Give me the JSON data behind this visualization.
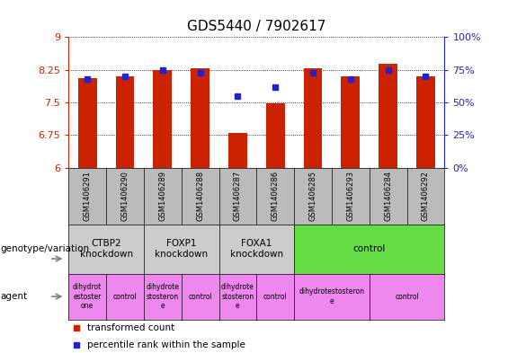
{
  "title": "GDS5440 / 7902617",
  "samples": [
    "GSM1406291",
    "GSM1406290",
    "GSM1406289",
    "GSM1406288",
    "GSM1406287",
    "GSM1406286",
    "GSM1406285",
    "GSM1406293",
    "GSM1406284",
    "GSM1406292"
  ],
  "transformed_counts": [
    8.05,
    8.1,
    8.25,
    8.28,
    6.8,
    7.48,
    8.28,
    8.1,
    8.38,
    8.1
  ],
  "percentile_ranks": [
    68,
    70,
    75,
    73,
    55,
    62,
    73,
    68,
    75,
    70
  ],
  "ylim_left": [
    6,
    9
  ],
  "ylim_right": [
    0,
    100
  ],
  "yticks_left": [
    6,
    6.75,
    7.5,
    8.25,
    9
  ],
  "yticks_right": [
    0,
    25,
    50,
    75,
    100
  ],
  "ytick_labels_left": [
    "6",
    "6.75",
    "7.5",
    "8.25",
    "9"
  ],
  "ytick_labels_right": [
    "0%",
    "25%",
    "50%",
    "75%",
    "100%"
  ],
  "bar_color": "#cc2200",
  "dot_color": "#2222cc",
  "bar_bottom": 6,
  "genotype_groups": [
    {
      "label": "CTBP2\nknockdown",
      "start": 0,
      "end": 2,
      "color": "#cccccc"
    },
    {
      "label": "FOXP1\nknockdown",
      "start": 2,
      "end": 4,
      "color": "#cccccc"
    },
    {
      "label": "FOXA1\nknockdown",
      "start": 4,
      "end": 6,
      "color": "#cccccc"
    },
    {
      "label": "control",
      "start": 6,
      "end": 10,
      "color": "#66dd44"
    }
  ],
  "agent_groups": [
    {
      "label": "dihydrot\nestoster\none",
      "start": 0,
      "end": 1,
      "color": "#ee88ee"
    },
    {
      "label": "control",
      "start": 1,
      "end": 2,
      "color": "#ee88ee"
    },
    {
      "label": "dihydrote\nstosteron\ne",
      "start": 2,
      "end": 3,
      "color": "#ee88ee"
    },
    {
      "label": "control",
      "start": 3,
      "end": 4,
      "color": "#ee88ee"
    },
    {
      "label": "dihydrote\nstosteron\ne",
      "start": 4,
      "end": 5,
      "color": "#ee88ee"
    },
    {
      "label": "control",
      "start": 5,
      "end": 6,
      "color": "#ee88ee"
    },
    {
      "label": "dihydrotestosteron\ne",
      "start": 6,
      "end": 8,
      "color": "#ee88ee"
    },
    {
      "label": "control",
      "start": 8,
      "end": 10,
      "color": "#ee88ee"
    }
  ],
  "legend_red_label": "transformed count",
  "legend_blue_label": "percentile rank within the sample",
  "genotype_label": "genotype/variation",
  "agent_label": "agent",
  "left_axis_color": "#cc2200",
  "right_axis_color": "#2222cc",
  "sample_bg_color": "#bbbbbb",
  "title_fontsize": 11,
  "tick_fontsize": 8,
  "sample_fontsize": 6,
  "table_fontsize": 7.5,
  "agent_fontsize": 5.5
}
